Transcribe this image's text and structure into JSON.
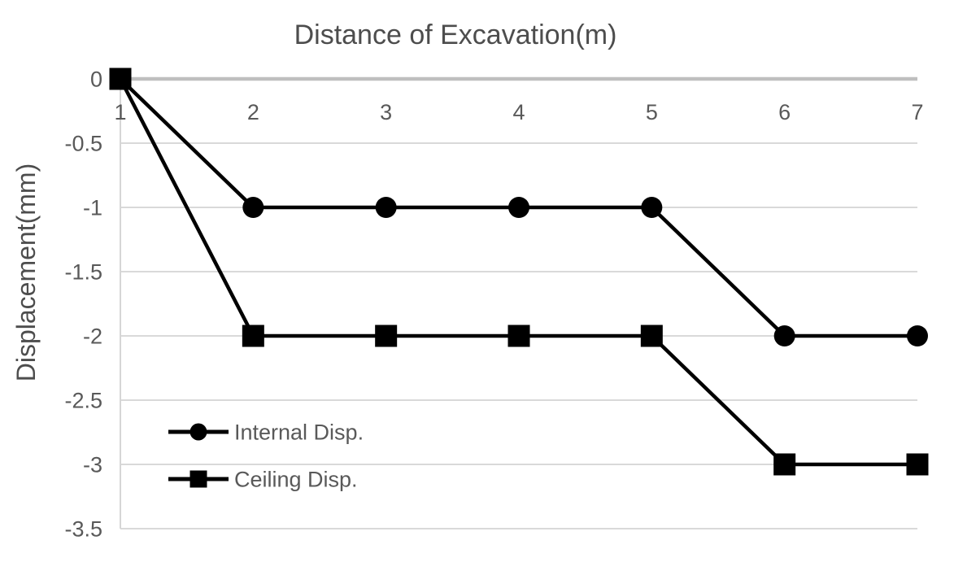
{
  "chart_data": {
    "type": "line",
    "title": "Distance of Excavation(m)",
    "xlabel": "",
    "ylabel": "Displacement(mm)",
    "x": [
      1,
      2,
      3,
      4,
      5,
      6,
      7
    ],
    "xtick_labels": [
      "1",
      "2",
      "3",
      "4",
      "5",
      "6",
      "7"
    ],
    "series": [
      {
        "name": "Internal Disp.",
        "marker": "circle",
        "values": [
          0,
          -1,
          -1,
          -1,
          -1,
          -2,
          -2
        ]
      },
      {
        "name": "Ceiling Disp.",
        "marker": "square",
        "values": [
          0,
          -2,
          -2,
          -2,
          -2,
          -3,
          -3
        ]
      }
    ],
    "xlim": [
      1,
      7
    ],
    "ylim": [
      -3.5,
      0
    ],
    "yticks": [
      {
        "value": 0,
        "label": "0"
      },
      {
        "value": -0.5,
        "label": "-0.5"
      },
      {
        "value": -1,
        "label": "-1"
      },
      {
        "value": -1.5,
        "label": "-1.5"
      },
      {
        "value": -2,
        "label": "-2"
      },
      {
        "value": -2.5,
        "label": "-2.5"
      },
      {
        "value": -3,
        "label": "-3"
      },
      {
        "value": -3.5,
        "label": "-3.5"
      }
    ],
    "grid": true,
    "legend_position": "inside-bottom-left",
    "colors": {
      "series": "#000000",
      "gridline": "#d9d9d9",
      "zero_axis": "#bfbfbf",
      "axis_line": "#d6d6d6",
      "tick_text": "#595959",
      "title_text": "#4d4d4d",
      "background": "#ffffff"
    }
  }
}
